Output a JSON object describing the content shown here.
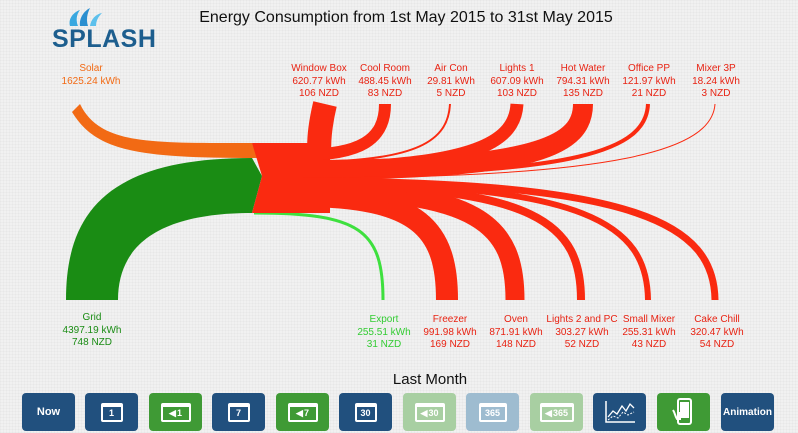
{
  "app": {
    "logo_text": "SPLASH",
    "title": "Energy Consumption from 1st May 2015 to 31st May 2015"
  },
  "sources": [
    {
      "id": "solar",
      "name": "Solar",
      "energy": "1625.24 kWh",
      "cost": "",
      "color": "#f26a14"
    },
    {
      "id": "grid",
      "name": "Grid",
      "energy": "4397.19 kWh",
      "cost": "748 NZD",
      "color": "#1a8c14"
    }
  ],
  "export": {
    "name": "Export",
    "energy": "255.51 kWh",
    "cost": "31 NZD",
    "color": "#33cc33"
  },
  "loads_top": [
    {
      "name": "Window Box",
      "energy": "620.77 kWh",
      "cost": "106 NZD"
    },
    {
      "name": "Cool Room",
      "energy": "488.45 kWh",
      "cost": "83 NZD"
    },
    {
      "name": "Air Con",
      "energy": "29.81 kWh",
      "cost": "5 NZD"
    },
    {
      "name": "Lights 1",
      "energy": "607.09 kWh",
      "cost": "103 NZD"
    },
    {
      "name": "Hot Water",
      "energy": "794.31 kWh",
      "cost": "135 NZD"
    },
    {
      "name": "Office PP",
      "energy": "121.97 kWh",
      "cost": "21 NZD"
    },
    {
      "name": "Mixer 3P",
      "energy": "18.24 kWh",
      "cost": "3 NZD"
    }
  ],
  "loads_bottom": [
    {
      "name": "Freezer",
      "energy": "991.98 kWh",
      "cost": "169 NZD"
    },
    {
      "name": "Oven",
      "energy": "871.91 kWh",
      "cost": "148 NZD"
    },
    {
      "name": "Lights 2 and PC",
      "energy": "303.27 kWh",
      "cost": "52 NZD"
    },
    {
      "name": "Small Mixer",
      "energy": "255.31 kWh",
      "cost": "43 NZD"
    },
    {
      "name": "Cake Chill",
      "energy": "320.47 kWh",
      "cost": "54 NZD"
    }
  ],
  "colors": {
    "load": "#fa2a10",
    "solar": "#f26a14",
    "grid": "#1a8c14",
    "export": "#3ee03e"
  },
  "footer": {
    "period_label": "Last Month",
    "buttons": [
      {
        "id": "now",
        "label": "Now",
        "icon": "",
        "style": "navy"
      },
      {
        "id": "day",
        "label": "1",
        "icon": "calendar-icon",
        "style": "navy"
      },
      {
        "id": "prev-day",
        "label": "1",
        "icon": "calendar-back-icon",
        "style": "green"
      },
      {
        "id": "week",
        "label": "7",
        "icon": "calendar-icon",
        "style": "navy"
      },
      {
        "id": "prev-week",
        "label": "7",
        "icon": "calendar-back-icon",
        "style": "green"
      },
      {
        "id": "month",
        "label": "30",
        "icon": "calendar-icon",
        "style": "navy"
      },
      {
        "id": "prev-month",
        "label": "30",
        "icon": "calendar-back-icon",
        "style": "fadedg"
      },
      {
        "id": "year",
        "label": "365",
        "icon": "calendar-icon",
        "style": "faded"
      },
      {
        "id": "prev-year",
        "label": "365",
        "icon": "calendar-back-icon",
        "style": "fadedg"
      },
      {
        "id": "chart",
        "label": "",
        "icon": "line-chart-icon",
        "style": "navy"
      },
      {
        "id": "mobile",
        "label": "",
        "icon": "mobile-phone-icon",
        "style": "green"
      },
      {
        "id": "animation",
        "label": "Animation",
        "icon": "",
        "style": "navy"
      }
    ]
  }
}
